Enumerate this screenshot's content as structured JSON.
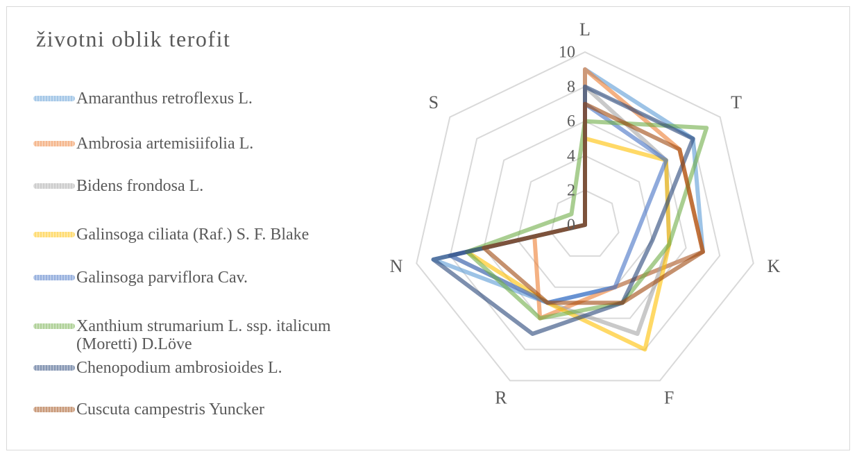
{
  "chart_data": {
    "type": "radar",
    "title": "životni oblik terofit",
    "categories": [
      "L",
      "T",
      "K",
      "F",
      "R",
      "N",
      "S"
    ],
    "rlim": [
      0,
      10
    ],
    "rticks": [
      0,
      2,
      4,
      6,
      8,
      10
    ],
    "grid": true,
    "legend": "left",
    "series": [
      {
        "name": "Amaranthus retroflexus L.",
        "color": "#5b9bd5",
        "values": [
          9,
          8,
          7,
          4,
          5,
          9,
          0
        ]
      },
      {
        "name": "Ambrosia artemisiifolia L.",
        "color": "#ed7d31",
        "values": [
          9,
          7,
          7,
          4,
          6,
          3,
          0
        ]
      },
      {
        "name": "Bidens frondosa L.",
        "color": "#a5a5a5",
        "values": [
          8,
          6,
          5,
          7,
          5,
          8,
          0
        ]
      },
      {
        "name": "Galinsoga ciliata (Raf.) S. F. Blake",
        "color": "#ffc000",
        "values": [
          5,
          6,
          5,
          8,
          5,
          7,
          0
        ]
      },
      {
        "name": "Galinsoga parviflora Cav.",
        "color": "#4472c4",
        "values": [
          7,
          6,
          3,
          4,
          5,
          8,
          0
        ]
      },
      {
        "name": "Xanthium strumarium L. ssp. italicum (Moretti) D.Löve",
        "color": "#70ad47",
        "values": [
          6,
          9,
          5,
          5,
          6,
          7,
          1
        ]
      },
      {
        "name": "Chenopodium ambrosioides L.",
        "color": "#264478",
        "values": [
          8,
          8,
          4,
          5,
          7,
          9,
          0
        ]
      },
      {
        "name": "Cuscuta campestris Yuncker",
        "color": "#9e480e",
        "values": [
          7,
          7,
          7,
          5,
          5,
          6,
          0
        ]
      }
    ]
  }
}
